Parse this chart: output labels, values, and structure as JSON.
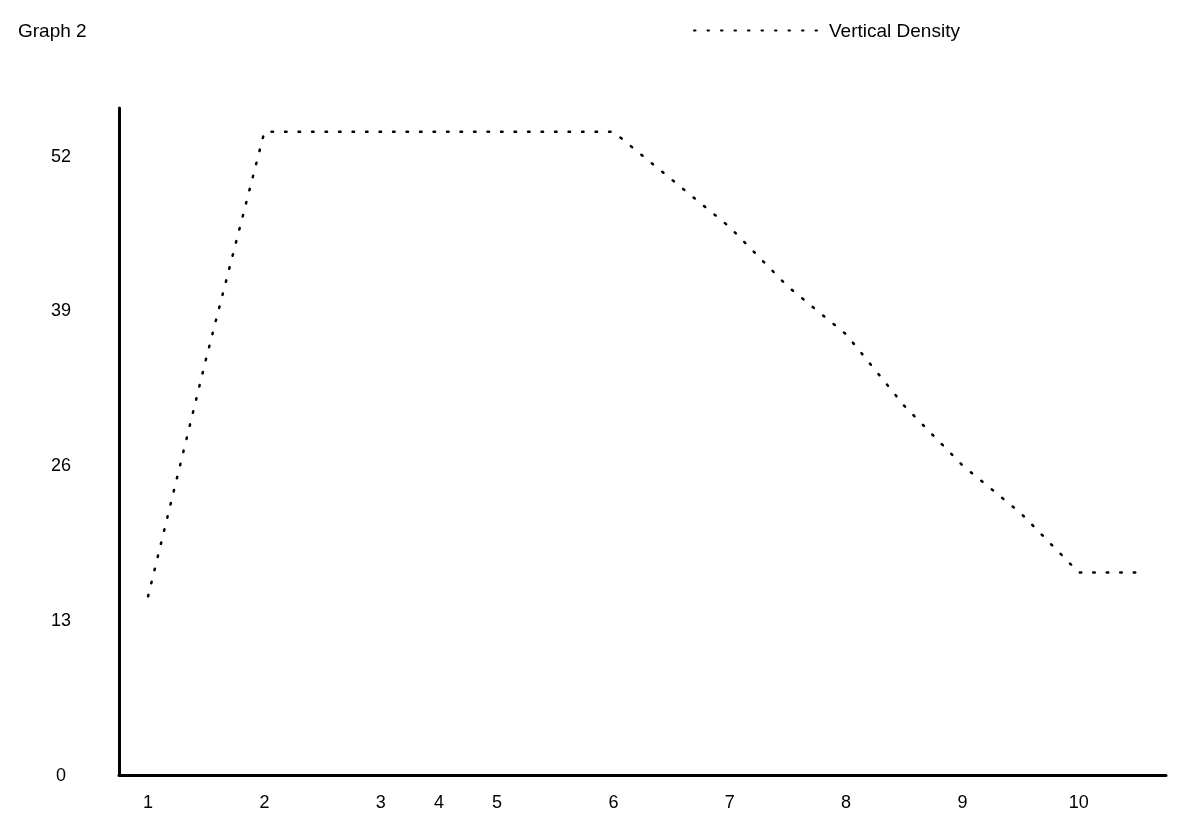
{
  "chart_data": {
    "type": "line",
    "title": "Graph 2",
    "categories": [
      "1",
      null,
      "2",
      null,
      "3",
      "4",
      "5",
      null,
      "6",
      null,
      "7",
      null,
      "8",
      null,
      "9",
      null,
      "10",
      null
    ],
    "series": [
      {
        "name": "Vertical Density",
        "color": "#000000",
        "values": [
          15,
          35,
          54,
          54,
          54,
          54,
          54,
          54,
          54,
          50,
          46,
          41,
          37,
          31,
          26,
          22,
          17,
          17
        ]
      }
    ],
    "ylim": [
      0,
      56
    ],
    "yticks": [
      0,
      13,
      26,
      39,
      52
    ],
    "grid": false,
    "legend": "top",
    "marker": "none",
    "line_style": "dotted"
  }
}
